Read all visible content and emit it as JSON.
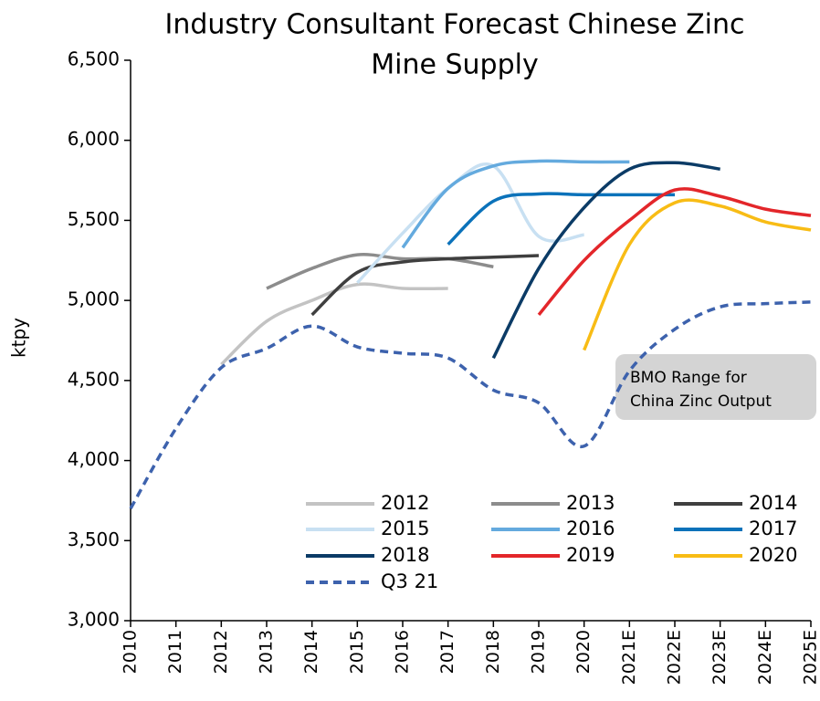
{
  "chart_data": {
    "type": "line",
    "title": [
      "Industry Consultant Forecast Chinese Zinc",
      "Mine Supply"
    ],
    "y_label": "ktpy",
    "categories": [
      "2010",
      "2011",
      "2012",
      "2013",
      "2014",
      "2015",
      "2016",
      "2017",
      "2018",
      "2019",
      "2020",
      "2021E",
      "2022E",
      "2023E",
      "2024E",
      "2025E"
    ],
    "ylim": [
      3000,
      6500
    ],
    "yticks": [
      {
        "value": 3000,
        "label": "3,000"
      },
      {
        "value": 3500,
        "label": "3,500"
      },
      {
        "value": 4000,
        "label": "4,000"
      },
      {
        "value": 4500,
        "label": "4,500"
      },
      {
        "value": 5000,
        "label": "5,000"
      },
      {
        "value": 5500,
        "label": "5,500"
      },
      {
        "value": 6000,
        "label": "6,000"
      },
      {
        "value": 6500,
        "label": "6,500"
      }
    ],
    "series": [
      {
        "name": "2012",
        "color": "#c3c3c3",
        "values": [
          null,
          null,
          4600,
          4870,
          5000,
          5100,
          5075,
          5075,
          null,
          null,
          null,
          null,
          null,
          null,
          null,
          null
        ]
      },
      {
        "name": "2013",
        "color": "#8c8c8c",
        "values": [
          null,
          null,
          null,
          5075,
          5200,
          5285,
          5260,
          5260,
          5210,
          null,
          null,
          null,
          null,
          null,
          null,
          null
        ]
      },
      {
        "name": "2014",
        "color": "#3f3f3f",
        "values": [
          null,
          null,
          null,
          null,
          4910,
          5175,
          5240,
          5260,
          5270,
          5280,
          null,
          null,
          null,
          null,
          null,
          null
        ]
      },
      {
        "name": "2015",
        "color": "#c8e0f2",
        "values": [
          null,
          null,
          null,
          null,
          null,
          5110,
          5420,
          5700,
          5840,
          5400,
          5410,
          null,
          null,
          null,
          null,
          null
        ]
      },
      {
        "name": "2016",
        "color": "#64aade",
        "values": [
          null,
          null,
          null,
          null,
          null,
          null,
          5330,
          5700,
          5840,
          5870,
          5865,
          5865,
          null,
          null,
          null,
          null
        ]
      },
      {
        "name": "2017",
        "color": "#0b72ba",
        "values": [
          null,
          null,
          null,
          null,
          null,
          null,
          null,
          5350,
          5620,
          5665,
          5660,
          5660,
          5660,
          null,
          null,
          null
        ]
      },
      {
        "name": "2018",
        "color": "#0b3b66",
        "values": [
          null,
          null,
          null,
          null,
          null,
          null,
          null,
          null,
          4640,
          5200,
          5580,
          5820,
          5860,
          5820,
          null,
          null
        ]
      },
      {
        "name": "2019",
        "color": "#e3262a",
        "values": [
          null,
          null,
          null,
          null,
          null,
          null,
          null,
          null,
          null,
          4910,
          5250,
          5500,
          5690,
          5650,
          5570,
          5530
        ]
      },
      {
        "name": "2020",
        "color": "#f8bc15",
        "values": [
          null,
          null,
          null,
          null,
          null,
          null,
          null,
          null,
          null,
          null,
          4690,
          5350,
          5610,
          5590,
          5490,
          5440
        ]
      },
      {
        "name": "Q3 21",
        "color": "#3d62ad",
        "dashed": true,
        "values": [
          3700,
          4200,
          4580,
          4700,
          4840,
          4710,
          4670,
          4640,
          4440,
          4360,
          4090,
          4560,
          4820,
          4960,
          4980,
          4990
        ]
      }
    ],
    "annotation": [
      "BMO Range for",
      "China Zinc Output"
    ]
  }
}
